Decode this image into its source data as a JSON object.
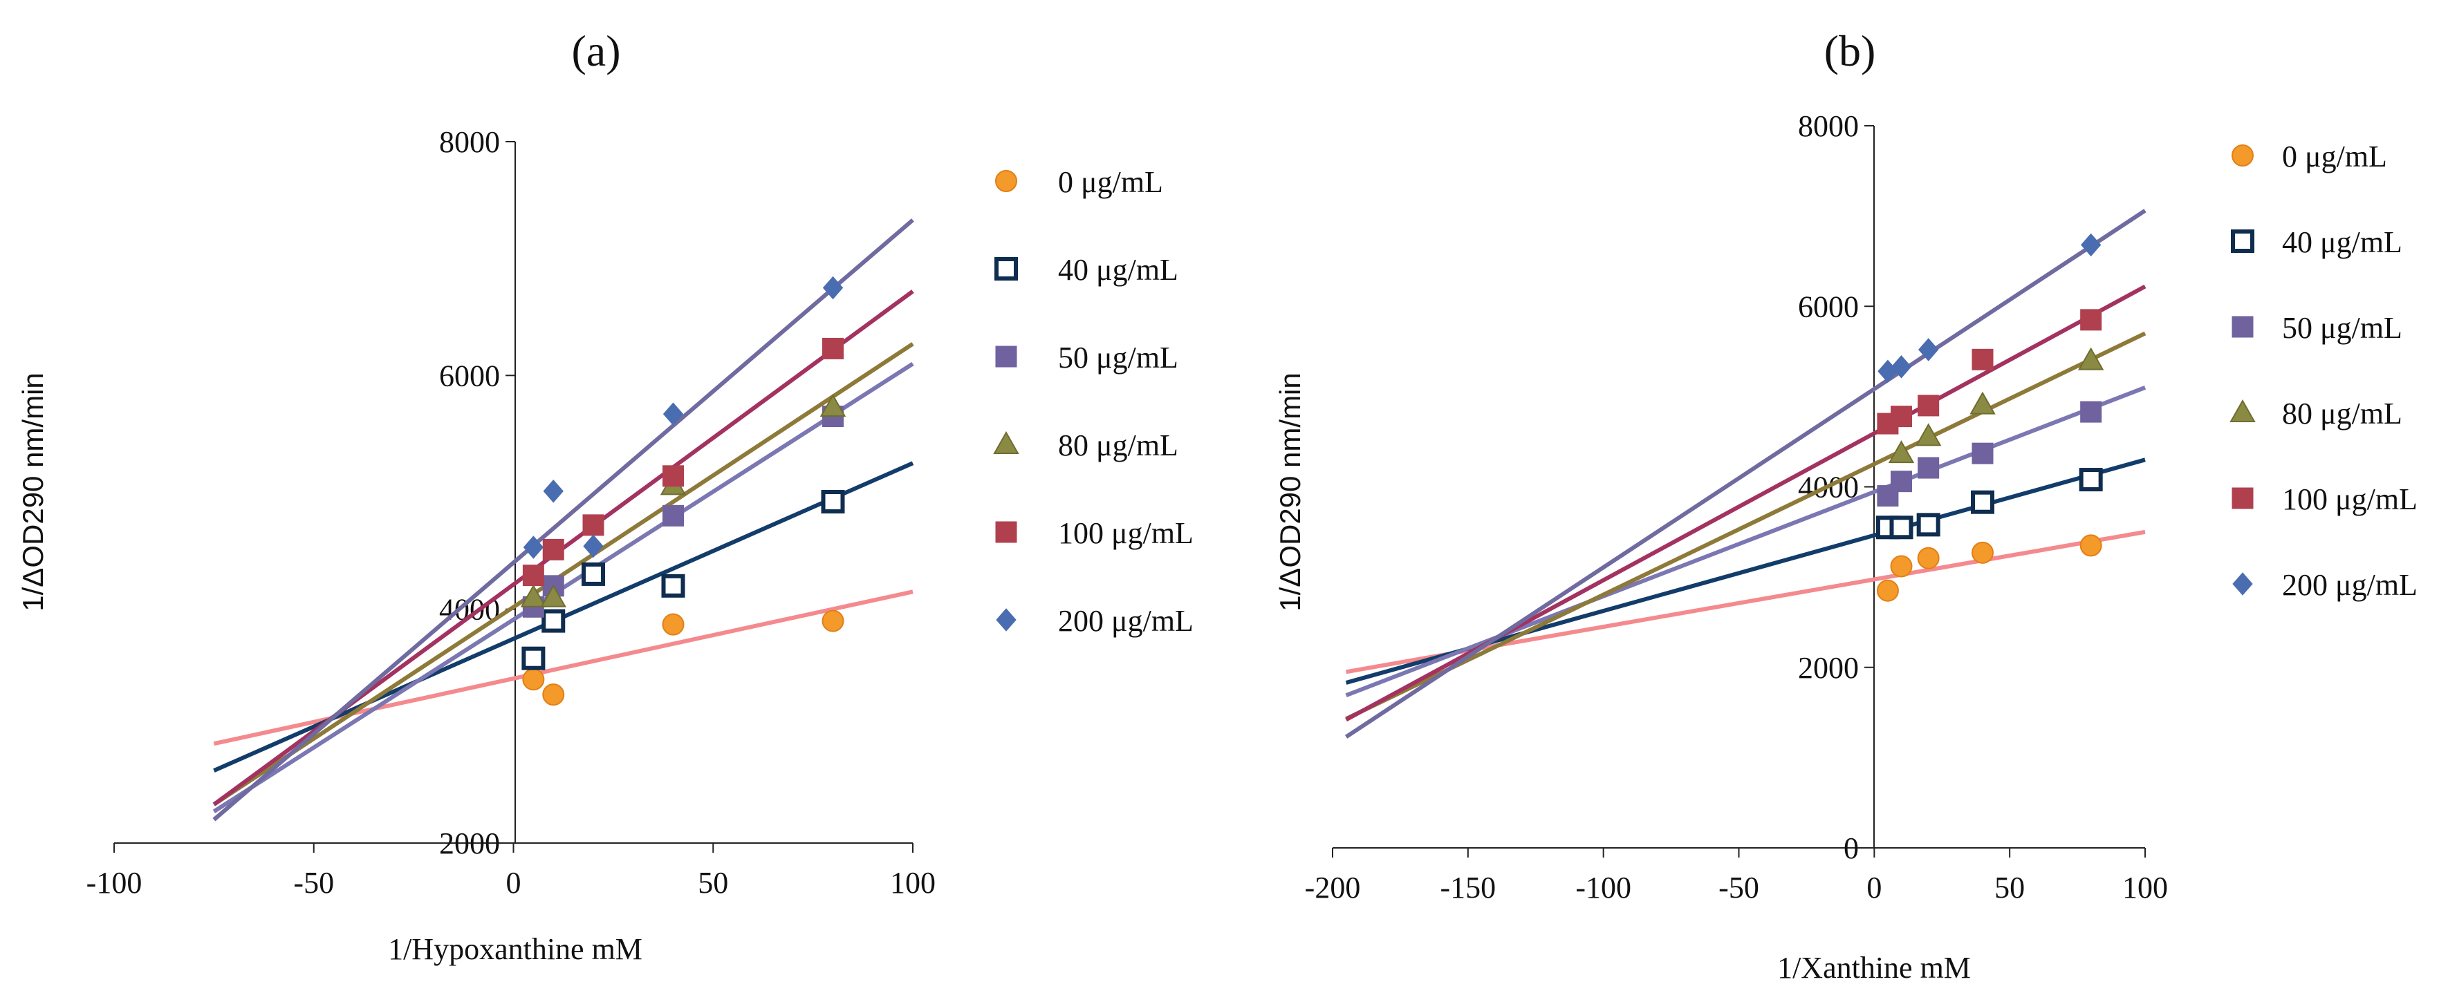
{
  "chart_data": [
    {
      "panel": "(a)",
      "type": "scatter",
      "fit": "linear",
      "xlabel": "1/Hypoxanthine mM",
      "ylabel": "1/ΔOD290 nm/min",
      "xlim": [
        -100,
        100
      ],
      "ylim": [
        2000,
        8000
      ],
      "xticks": [
        -100,
        -50,
        0,
        50,
        100
      ],
      "yticks": [
        2000,
        4000,
        6000,
        8000
      ],
      "fit_x_range": [
        -75,
        100
      ],
      "series": [
        {
          "name": "0 μg/mL",
          "marker": "circle",
          "color": "#F39A2B",
          "x": [
            5,
            10,
            40,
            80
          ],
          "y": [
            3400,
            3270,
            3870,
            3900
          ],
          "line_color": "#F48A8E",
          "line": [
            [
              -75,
              2850
            ],
            [
              100,
              4150
            ]
          ]
        },
        {
          "name": "40 μg/mL",
          "marker": "open-square",
          "color": "#0E2D4F",
          "x": [
            5,
            10,
            20,
            40,
            80
          ],
          "y": [
            3580,
            3900,
            4300,
            4200,
            4920
          ],
          "line_color": "#123C6A",
          "line": [
            [
              -75,
              2620
            ],
            [
              100,
              5250
            ]
          ]
        },
        {
          "name": "50 μg/mL",
          "marker": "square",
          "color": "#6F629E",
          "x": [
            5,
            10,
            40,
            80
          ],
          "y": [
            4020,
            4200,
            4800,
            5650
          ],
          "line_color": "#7A77B2",
          "line": [
            [
              -75,
              2270
            ],
            [
              100,
              6100
            ]
          ]
        },
        {
          "name": "80 μg/mL",
          "marker": "triangle",
          "color": "#8B8A45",
          "x": [
            5,
            10,
            40,
            80
          ],
          "y": [
            4100,
            4100,
            5060,
            5730
          ],
          "line_color": "#8E7A38",
          "line": [
            [
              -75,
              2330
            ],
            [
              100,
              6270
            ]
          ]
        },
        {
          "name": "100 μg/mL",
          "marker": "square",
          "color": "#B0404E",
          "x": [
            5,
            10,
            20,
            40,
            80
          ],
          "y": [
            4290,
            4510,
            4720,
            5140,
            6230
          ],
          "line_color": "#A43260",
          "line": [
            [
              -75,
              2330
            ],
            [
              100,
              6720
            ]
          ]
        },
        {
          "name": "200 μg/mL",
          "marker": "diamond",
          "color": "#4A6CB0",
          "x": [
            5,
            10,
            20,
            40,
            80
          ],
          "y": [
            4530,
            5010,
            4540,
            5670,
            6750
          ],
          "line_color": "#6F6BA0",
          "line": [
            [
              -75,
              2200
            ],
            [
              100,
              7330
            ]
          ]
        }
      ]
    },
    {
      "panel": "(b)",
      "type": "scatter",
      "fit": "linear",
      "xlabel": "1/Xanthine mM",
      "ylabel": "1/ΔOD290 nm/min",
      "xlim": [
        -200,
        100
      ],
      "ylim": [
        0,
        8000
      ],
      "xticks": [
        -200,
        -150,
        -100,
        -50,
        0,
        50,
        100
      ],
      "yticks": [
        0,
        2000,
        4000,
        6000,
        8000
      ],
      "fit_x_range": [
        -195,
        100
      ],
      "series": [
        {
          "name": "0 μg/mL",
          "marker": "circle",
          "color": "#F39A2B",
          "x": [
            5,
            10,
            20,
            40,
            80
          ],
          "y": [
            2850,
            3120,
            3210,
            3270,
            3350
          ],
          "line_color": "#F48A8E",
          "line": [
            [
              -195,
              1950
            ],
            [
              100,
              3500
            ]
          ]
        },
        {
          "name": "40 μg/mL",
          "marker": "open-square",
          "color": "#0E2D4F",
          "x": [
            5,
            10,
            20,
            40,
            80
          ],
          "y": [
            3550,
            3550,
            3580,
            3830,
            4080
          ],
          "line_color": "#123C6A",
          "line": [
            [
              -195,
              1830
            ],
            [
              100,
              4300
            ]
          ]
        },
        {
          "name": "50 μg/mL",
          "marker": "square",
          "color": "#6F629E",
          "x": [
            5,
            10,
            20,
            40,
            80
          ],
          "y": [
            3900,
            4060,
            4210,
            4370,
            4830
          ],
          "line_color": "#7A77B2",
          "line": [
            [
              -195,
              1690
            ],
            [
              100,
              5100
            ]
          ]
        },
        {
          "name": "80 μg/mL",
          "marker": "triangle",
          "color": "#8B8A45",
          "x": [
            10,
            20,
            40,
            80
          ],
          "y": [
            4370,
            4560,
            4910,
            5400
          ],
          "line_color": "#8E7A38",
          "line": [
            [
              -195,
              1430
            ],
            [
              100,
              5700
            ]
          ]
        },
        {
          "name": "100 μg/mL",
          "marker": "square",
          "color": "#B0404E",
          "x": [
            5,
            10,
            20,
            40,
            80
          ],
          "y": [
            4700,
            4780,
            4900,
            5410,
            5850
          ],
          "line_color": "#A43260",
          "line": [
            [
              -195,
              1420
            ],
            [
              100,
              6220
            ]
          ]
        },
        {
          "name": "200 μg/mL",
          "marker": "diamond",
          "color": "#4A6CB0",
          "x": [
            5,
            10,
            20,
            80
          ],
          "y": [
            5280,
            5330,
            5520,
            6680
          ],
          "line_color": "#6F6BA0",
          "line": [
            [
              -195,
              1230
            ],
            [
              100,
              7060
            ]
          ]
        }
      ]
    }
  ]
}
